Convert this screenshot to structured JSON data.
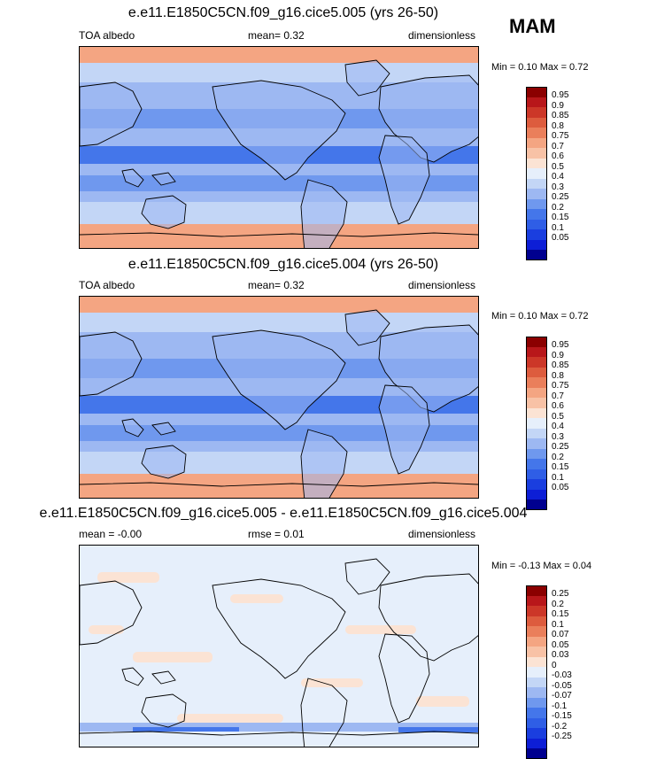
{
  "season": "MAM",
  "colors": {
    "abs_scale": [
      "#00008f",
      "#0d1ed6",
      "#1a3edf",
      "#2f5ee6",
      "#4476ea",
      "#6f98ee",
      "#9db8f2",
      "#c3d6f6",
      "#e6effb",
      "#fbe3d4",
      "#f8c2a6",
      "#f4a582",
      "#ea7f5b",
      "#dd5c3e",
      "#cc3728",
      "#b8171a",
      "#8b0000"
    ],
    "diff_scale": [
      "#00008f",
      "#0d1ed6",
      "#1a3edf",
      "#2f5ee6",
      "#4476ea",
      "#6f98ee",
      "#9db8f2",
      "#c3d6f6",
      "#e6effb",
      "#fbe3d4",
      "#f8c2a6",
      "#f4a582",
      "#ea7f5b",
      "#dd5c3e",
      "#cc3728",
      "#b8171a",
      "#8b0000"
    ]
  },
  "panels": [
    {
      "title": "e.e11.E1850C5CN.f09_g16.cice5.005 (yrs 26-50)",
      "left_label": "TOA albedo",
      "mid_label": "mean=  0.32",
      "right_label": "dimensionless",
      "minmax": "Min =  0.10 Max =  0.72",
      "ticks": [
        "0.95",
        "0.9",
        "0.85",
        "0.8",
        "0.75",
        "0.7",
        "0.6",
        "0.5",
        "0.4",
        "0.3",
        "0.25",
        "0.2",
        "0.15",
        "0.1",
        "0.05"
      ]
    },
    {
      "title": "e.e11.E1850C5CN.f09_g16.cice5.004 (yrs 26-50)",
      "left_label": "TOA albedo",
      "mid_label": "mean=  0.32",
      "right_label": "dimensionless",
      "minmax": "Min =  0.10 Max =  0.72",
      "ticks": [
        "0.95",
        "0.9",
        "0.85",
        "0.8",
        "0.75",
        "0.7",
        "0.6",
        "0.5",
        "0.4",
        "0.3",
        "0.25",
        "0.2",
        "0.15",
        "0.1",
        "0.05"
      ]
    },
    {
      "title": "e.e11.E1850C5CN.f09_g16.cice5.005 - e.e11.E1850C5CN.f09_g16.cice5.004",
      "left_label": "mean = -0.00",
      "mid_label": "rmse =  0.01",
      "right_label": "dimensionless",
      "minmax": "Min = -0.13 Max =  0.04",
      "ticks": [
        "0.25",
        "0.2",
        "0.15",
        "0.1",
        "0.07",
        "0.05",
        "0.03",
        "0",
        "-0.03",
        "-0.05",
        "-0.07",
        "-0.1",
        "-0.15",
        "-0.2",
        "-0.25"
      ]
    }
  ]
}
